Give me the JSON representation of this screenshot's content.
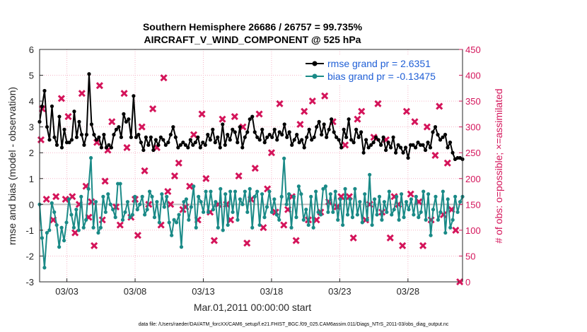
{
  "chart_data": {
    "type": "line",
    "title_line1": "Southern Hemisphere 26686 / 26757 = 99.735%",
    "title_line2": "AIRCRAFT_V_WIND_COMPONENT @ 525 hPa",
    "ylabel_left": "rmse and bias (model - observation)",
    "ylabel_right": "# of obs: o=possible; ×=assimilated",
    "xlabel": "Mar.01,2011 00:00:00 start",
    "footer": "data file: /Users/raeder/DAI/ATM_forcXX/CAM6_setup/f.e21.FHIST_BGC.f09_025.CAM6assim.011/Diags_NTrS_2011-03/obs_diag_output.nc",
    "xlim": [
      1.0,
      32.0
    ],
    "ylim_left": [
      -3,
      6
    ],
    "ylim_right": [
      0,
      450
    ],
    "yticks_left": [
      -3,
      -2,
      -1,
      0,
      1,
      2,
      3,
      4,
      5,
      6
    ],
    "yticks_right": [
      0,
      50,
      100,
      150,
      200,
      250,
      300,
      350,
      400,
      450
    ],
    "xtick_values": [
      3,
      8,
      13,
      18,
      23,
      28
    ],
    "xtick_labels": [
      "03/03",
      "03/08",
      "03/13",
      "03/18",
      "03/23",
      "03/28"
    ],
    "legend": [
      {
        "label": "rmse grand pr = 2.6351",
        "color": "#000000"
      },
      {
        "label": "bias grand pr = -0.13475",
        "color": "#1a8a87"
      }
    ],
    "colors": {
      "rmse": "#000000",
      "bias": "#1a8a87",
      "obs": "#d4145a",
      "grid": "#f5b6c8",
      "zero_line": "#bfbfbf"
    },
    "series": [
      {
        "name": "rmse",
        "values": [
          3.2,
          3.8,
          4.4,
          3.0,
          2.5,
          3.8,
          2.6,
          2.3,
          3.4,
          2.2,
          2.9,
          2.4,
          2.4,
          2.5,
          3.6,
          2.6,
          3.2,
          2.7,
          2.3,
          2.7,
          5.05,
          3.1,
          2.7,
          2.5,
          2.6,
          2.2,
          2.7,
          2.2,
          2.3,
          2.2,
          2.7,
          2.9,
          3.0,
          2.6,
          3.5,
          3.2,
          3.3,
          2.6,
          4.2,
          2.6,
          2.7,
          2.4,
          2.1,
          2.6,
          2.3,
          2.6,
          2.1,
          2.5,
          2.3,
          2.6,
          2.5,
          2.3,
          2.4,
          2.7,
          3.0,
          2.6,
          2.2,
          2.3,
          2.4,
          2.3,
          2.2,
          2.5,
          2.3,
          2.4,
          2.6,
          2.2,
          2.4,
          2.3,
          2.7,
          2.5,
          2.9,
          2.4,
          2.6,
          2.2,
          3.1,
          2.3,
          2.7,
          2.5,
          2.9,
          2.8,
          2.4,
          3.0,
          2.2,
          2.6,
          2.8,
          3.3,
          3.4,
          2.8,
          2.6,
          2.5,
          2.9,
          2.4,
          2.6,
          2.7,
          2.6,
          2.9,
          2.5,
          2.8,
          2.7,
          3.1,
          2.6,
          2.8,
          2.3,
          2.5,
          2.7,
          2.4,
          2.5,
          2.2,
          2.6,
          2.9,
          2.5,
          2.6,
          3.0,
          3.2,
          2.7,
          3.1,
          2.6,
          2.9,
          3.3,
          2.8,
          2.6,
          2.5,
          2.2,
          2.9,
          2.6,
          3.3,
          2.5,
          2.4,
          2.9,
          2.6,
          2.8,
          2.0,
          2.5,
          2.2,
          2.3,
          2.4,
          2.6,
          2.5,
          2.3,
          2.6,
          2.1,
          2.4,
          2.2,
          2.6,
          2.0,
          2.3,
          2.2,
          2.0,
          2.2,
          1.8,
          2.3,
          2.3,
          2.2,
          2.4,
          2.3,
          2.3,
          2.1,
          2.4,
          2.2,
          2.8,
          3.0,
          2.7,
          2.5,
          2.6,
          2.7,
          2.2,
          2.4,
          2.0,
          1.75,
          1.8,
          1.8,
          1.75
        ]
      },
      {
        "name": "bias",
        "values": [
          0.0,
          -1.3,
          -2.45,
          -1.1,
          -1.0,
          0.05,
          -0.3,
          -0.8,
          -1.65,
          -0.9,
          -1.4,
          -0.7,
          0.2,
          -0.4,
          -0.9,
          -0.2,
          -1.0,
          0.3,
          -0.9,
          -0.6,
          0.6,
          1.8,
          -0.9,
          0.1,
          -1.1,
          -0.9,
          0.3,
          -0.3,
          0.4,
          0.0,
          -0.2,
          -0.5,
          0.8,
          0.8,
          -0.6,
          -0.3,
          0.1,
          -0.5,
          -0.4,
          0.3,
          -0.2,
          0.0,
          0.3,
          -0.4,
          -0.2,
          0.5,
          0.3,
          -0.5,
          0.1,
          -0.7,
          0.4,
          -0.1,
          0.3,
          -0.7,
          -1.2,
          -0.6,
          -0.7,
          -0.4,
          -1.65,
          0.1,
          0.2,
          -0.6,
          -0.1,
          0.7,
          -0.9,
          0.3,
          0.1,
          -0.3,
          0.5,
          -0.3,
          0.5,
          -0.2,
          0.1,
          -0.9,
          0.6,
          -1.0,
          0.4,
          -0.8,
          0.5,
          -0.3,
          0.5,
          -0.6,
          0.2,
          0.0,
          0.5,
          -0.3,
          0.6,
          -0.9,
          0.3,
          0.5,
          -0.8,
          0.4,
          -0.5,
          -0.1,
          0.5,
          -0.3,
          0.2,
          -0.4,
          -0.6,
          0.3,
          1.78,
          0.0,
          0.4,
          -0.9,
          0.3,
          -0.5,
          0.7,
          0.4,
          -0.6,
          -0.2,
          -0.8,
          0.3,
          -0.9,
          0.5,
          -0.3,
          -0.4,
          0.6,
          0.7,
          -0.3,
          0.4,
          -0.3,
          0.5,
          -0.6,
          0.2,
          -0.8,
          0.6,
          -0.4,
          0.2,
          -0.5,
          0.6,
          -0.4,
          0.1,
          -0.7,
          0.4,
          -0.6,
          1.15,
          -0.8,
          0.2,
          -0.4,
          0.3,
          -0.6,
          0.1,
          -0.3,
          0.5,
          -0.4,
          -0.2,
          0.3,
          -0.6,
          0.4,
          -0.5,
          0.1,
          -0.2,
          0.2,
          -0.4,
          0.3,
          -0.5,
          -0.3,
          0.5,
          -0.6,
          0.4,
          -1.2,
          -0.2,
          0.3,
          -0.6,
          -0.3,
          0.5,
          -1.1,
          0.2,
          -0.9,
          -0.6,
          0.3,
          -0.3,
          0.1,
          0.3
        ]
      },
      {
        "name": "obs_assimilated",
        "x": [
          1.1,
          1.2,
          1.5,
          2.0,
          2.2,
          2.6,
          2.9,
          3.1,
          3.4,
          3.6,
          3.9,
          4.1,
          4.4,
          4.6,
          4.8,
          5.0,
          5.2,
          5.4,
          5.6,
          5.8,
          6.0,
          6.3,
          6.6,
          6.9,
          7.2,
          7.4,
          7.7,
          8.0,
          8.2,
          8.5,
          8.7,
          9.0,
          9.3,
          9.6,
          9.9,
          10.1,
          10.4,
          10.6,
          10.9,
          11.2,
          11.5,
          11.7,
          12.0,
          12.3,
          12.6,
          12.9,
          13.2,
          13.5,
          13.8,
          14.1,
          14.4,
          14.7,
          15.0,
          15.3,
          15.6,
          15.9,
          16.2,
          16.5,
          16.8,
          17.1,
          17.4,
          17.7,
          18.0,
          18.3,
          18.6,
          18.9,
          19.2,
          19.5,
          19.8,
          20.1,
          20.4,
          20.7,
          21.0,
          21.3,
          21.6,
          21.9,
          22.2,
          22.5,
          22.8,
          23.1,
          23.4,
          23.7,
          24.0,
          24.3,
          24.6,
          24.9,
          25.2,
          25.5,
          25.8,
          26.1,
          26.4,
          26.7,
          27.0,
          27.3,
          27.6,
          27.9,
          28.2,
          28.5,
          28.8,
          29.1,
          29.4,
          29.7,
          30.0,
          30.3,
          30.6,
          30.9,
          31.2,
          31.5,
          31.8
        ],
        "values": [
          275,
          335,
          160,
          120,
          165,
          355,
          160,
          320,
          165,
          95,
          150,
          365,
          185,
          125,
          155,
          70,
          270,
          380,
          120,
          195,
          255,
          310,
          145,
          110,
          365,
          260,
          125,
          160,
          90,
          300,
          215,
          150,
          335,
          260,
          110,
          395,
          175,
          150,
          205,
          230,
          140,
          145,
          185,
          285,
          120,
          325,
          200,
          135,
          80,
          150,
          315,
          150,
          120,
          320,
          205,
          300,
          75,
          160,
          220,
          325,
          105,
          180,
          250,
          135,
          345,
          110,
          140,
          165,
          80,
          305,
          330,
          120,
          350,
          120,
          135,
          360,
          155,
          310,
          145,
          165,
          265,
          165,
          85,
          315,
          330,
          120,
          150,
          280,
          345,
          135,
          275,
          85,
          165,
          150,
          70,
          330,
          170,
          310,
          155,
          70,
          300,
          120,
          245,
          340,
          130,
          230,
          140,
          100,
          0
        ]
      }
    ]
  }
}
